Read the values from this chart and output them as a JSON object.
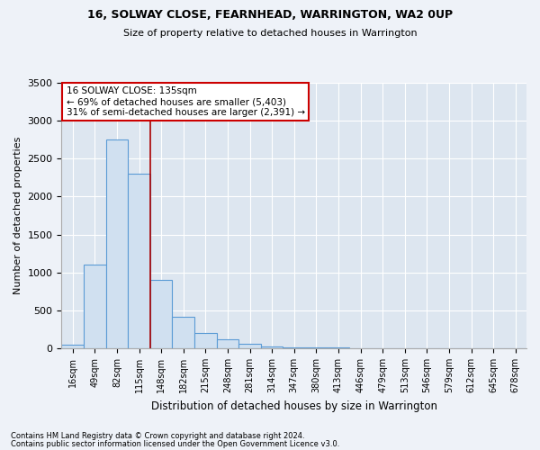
{
  "title": "16, SOLWAY CLOSE, FEARNHEAD, WARRINGTON, WA2 0UP",
  "subtitle": "Size of property relative to detached houses in Warrington",
  "xlabel": "Distribution of detached houses by size in Warrington",
  "ylabel": "Number of detached properties",
  "categories": [
    "16sqm",
    "49sqm",
    "82sqm",
    "115sqm",
    "148sqm",
    "182sqm",
    "215sqm",
    "248sqm",
    "281sqm",
    "314sqm",
    "347sqm",
    "380sqm",
    "413sqm",
    "446sqm",
    "479sqm",
    "513sqm",
    "546sqm",
    "579sqm",
    "612sqm",
    "645sqm",
    "678sqm"
  ],
  "values": [
    50,
    1100,
    2750,
    2300,
    900,
    420,
    200,
    120,
    65,
    30,
    15,
    10,
    8,
    5,
    3,
    2,
    1,
    1,
    1,
    1,
    1
  ],
  "bar_color": "#d0e0f0",
  "bar_edge_color": "#5b9bd5",
  "vline_x_index": 3.5,
  "vline_color": "#aa0000",
  "annotation_text": "16 SOLWAY CLOSE: 135sqm\n← 69% of detached houses are smaller (5,403)\n31% of semi-detached houses are larger (2,391) →",
  "annotation_box_color": "white",
  "annotation_box_edge": "#cc0000",
  "ylim": [
    0,
    3500
  ],
  "yticks": [
    0,
    500,
    1000,
    1500,
    2000,
    2500,
    3000,
    3500
  ],
  "footer1": "Contains HM Land Registry data © Crown copyright and database right 2024.",
  "footer2": "Contains public sector information licensed under the Open Government Licence v3.0.",
  "bg_color": "#eef2f8",
  "plot_bg_color": "#dde6f0",
  "grid_color": "#ffffff",
  "title_fontsize": 9,
  "subtitle_fontsize": 8,
  "ylabel_fontsize": 8,
  "xlabel_fontsize": 8.5,
  "ytick_fontsize": 8,
  "xtick_fontsize": 7,
  "annot_fontsize": 7.5,
  "footer_fontsize": 6
}
